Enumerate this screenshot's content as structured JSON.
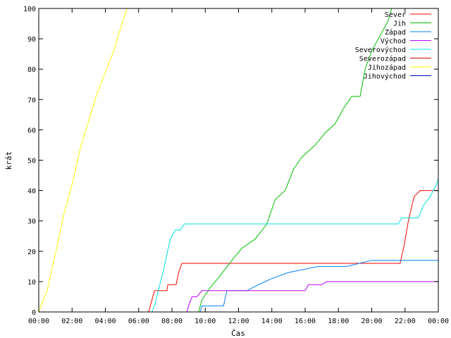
{
  "chart_data": {
    "type": "line",
    "title": "",
    "xlabel": "Čas",
    "ylabel": "krát",
    "xlim": [
      "00:00",
      "24:00"
    ],
    "ylim": [
      0,
      100
    ],
    "x_ticks": [
      "00:00",
      "02:00",
      "04:00",
      "06:00",
      "08:00",
      "10:00",
      "12:00",
      "14:00",
      "16:00",
      "18:00",
      "20:00",
      "22:00",
      "00:00"
    ],
    "y_ticks": [
      0,
      10,
      20,
      30,
      40,
      50,
      60,
      70,
      80,
      90,
      100
    ],
    "grid": false,
    "legend_position": "top-right",
    "series": [
      {
        "name": "Sever",
        "color": "#ff0000",
        "points": [
          [
            0,
            0
          ],
          [
            6.6,
            0
          ],
          [
            6.75,
            3
          ],
          [
            6.95,
            7
          ],
          [
            7.7,
            7
          ],
          [
            7.75,
            9
          ],
          [
            8.25,
            9
          ],
          [
            8.4,
            13
          ],
          [
            8.6,
            16
          ],
          [
            21.7,
            16
          ],
          [
            21.95,
            22
          ],
          [
            22.2,
            30
          ],
          [
            22.55,
            38
          ],
          [
            22.9,
            40
          ],
          [
            24,
            40
          ]
        ]
      },
      {
        "name": "Jih",
        "color": "#00c000",
        "points": [
          [
            0,
            0
          ],
          [
            9.6,
            0
          ],
          [
            9.8,
            4
          ],
          [
            10.3,
            8
          ],
          [
            10.9,
            12
          ],
          [
            11.6,
            17
          ],
          [
            12.2,
            21
          ],
          [
            13.0,
            24
          ],
          [
            13.7,
            29
          ],
          [
            14.2,
            37
          ],
          [
            14.8,
            40
          ],
          [
            15.3,
            47
          ],
          [
            15.8,
            51
          ],
          [
            16.6,
            55
          ],
          [
            17.2,
            59
          ],
          [
            17.8,
            62
          ],
          [
            18.3,
            67
          ],
          [
            18.8,
            71
          ],
          [
            19.3,
            71
          ],
          [
            19.6,
            80
          ],
          [
            20.0,
            86
          ],
          [
            20.5,
            91
          ],
          [
            21.0,
            96
          ],
          [
            21.2,
            100
          ]
        ]
      },
      {
        "name": "Západ",
        "color": "#0080ff",
        "points": [
          [
            0,
            0
          ],
          [
            9.7,
            0
          ],
          [
            9.8,
            2
          ],
          [
            11.1,
            2
          ],
          [
            11.3,
            7
          ],
          [
            12.5,
            7
          ],
          [
            13.2,
            9
          ],
          [
            14.0,
            11
          ],
          [
            15.0,
            13
          ],
          [
            16.8,
            15
          ],
          [
            18.5,
            15
          ],
          [
            20.0,
            17
          ],
          [
            24,
            17
          ]
        ]
      },
      {
        "name": "Východ",
        "color": "#c000ff",
        "points": [
          [
            0,
            0
          ],
          [
            8.9,
            0
          ],
          [
            9.0,
            2
          ],
          [
            9.2,
            5
          ],
          [
            9.5,
            5
          ],
          [
            9.8,
            7
          ],
          [
            16.0,
            7
          ],
          [
            16.2,
            9
          ],
          [
            17.0,
            9
          ],
          [
            17.3,
            10
          ],
          [
            24,
            10
          ]
        ]
      },
      {
        "name": "Severovýchod",
        "color": "#00e0e0",
        "points": [
          [
            0,
            0
          ],
          [
            6.8,
            0
          ],
          [
            7.0,
            3
          ],
          [
            7.5,
            14
          ],
          [
            7.9,
            24
          ],
          [
            8.2,
            27
          ],
          [
            8.5,
            27
          ],
          [
            8.75,
            29
          ],
          [
            21.6,
            29
          ],
          [
            21.8,
            31
          ],
          [
            22.8,
            31
          ],
          [
            23.1,
            35
          ],
          [
            23.5,
            38
          ],
          [
            23.9,
            42
          ],
          [
            24,
            44
          ]
        ]
      },
      {
        "name": "Severozápad",
        "color": "#d00000",
        "points": []
      },
      {
        "name": "Jihozápad",
        "color": "#ffff00",
        "points": [
          [
            0,
            0
          ],
          [
            0.5,
            7
          ],
          [
            1.0,
            19
          ],
          [
            1.5,
            32
          ],
          [
            2.0,
            42
          ],
          [
            2.5,
            54
          ],
          [
            3.0,
            63
          ],
          [
            3.5,
            72
          ],
          [
            4.0,
            79
          ],
          [
            4.5,
            86
          ],
          [
            5.0,
            95
          ],
          [
            5.3,
            100
          ]
        ]
      },
      {
        "name": "Jihovýchod",
        "color": "#0000c0",
        "points": []
      }
    ]
  }
}
